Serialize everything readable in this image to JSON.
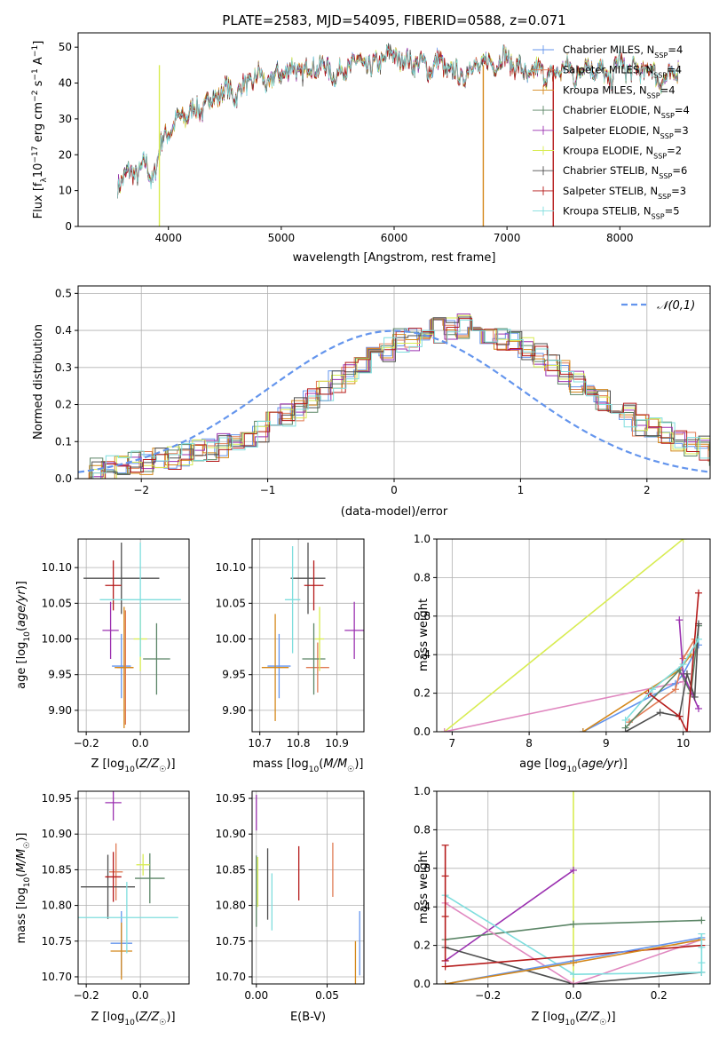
{
  "colors": {
    "chabrier_miles": "#6495ed",
    "salpeter_miles": "#e07b54",
    "kroupa_miles": "#d4871a",
    "chabrier_elodie": "#5b8566",
    "salpeter_elodie": "#9b30b0",
    "kroupa_elodie": "#d8ec52",
    "chabrier_stelib": "#4f4f4f",
    "salpeter_stelib": "#b51a1a",
    "kroupa_stelib": "#7fdede",
    "pink": "#e088c0",
    "normal_curve": "#6495ed"
  },
  "chart_data": [
    {
      "id": "spectrum",
      "type": "line",
      "title": "PLATE=2583, MJD=54095, FIBERID=0588, z=0.071",
      "xlabel": "wavelength [Angstrom, rest frame]",
      "ylabel": "Flux [f_λ 10^-17 erg cm^-2 s^-1 A^-1]",
      "xlim": [
        3200,
        8800
      ],
      "ylim": [
        0,
        54
      ],
      "xticks": [
        "4000",
        "5000",
        "6000",
        "7000",
        "8000"
      ],
      "yticks": [
        "0",
        "10",
        "20",
        "30",
        "40",
        "50"
      ],
      "legend_position": "right",
      "legend": [
        {
          "label": "Chabrier MILES, N_SSP=4",
          "main": "Chabrier MILES, N",
          "sub": "SSP",
          "tail": "=4",
          "color": "#6495ed"
        },
        {
          "label": "Salpeter MILES, N_SSP=4",
          "main": "Salpeter MILES, N",
          "sub": "SSP",
          "tail": "=4",
          "color": "#e07b54"
        },
        {
          "label": "Kroupa MILES, N_SSP=4",
          "main": "Kroupa MILES, N",
          "sub": "SSP",
          "tail": "=4",
          "color": "#d4871a"
        },
        {
          "label": "Chabrier ELODIE, N_SSP=4",
          "main": "Chabrier ELODIE, N",
          "sub": "SSP",
          "tail": "=4",
          "color": "#5b8566"
        },
        {
          "label": "Salpeter ELODIE, N_SSP=3",
          "main": "Salpeter ELODIE, N",
          "sub": "SSP",
          "tail": "=3",
          "color": "#9b30b0"
        },
        {
          "label": "Kroupa ELODIE, N_SSP=2",
          "main": "Kroupa ELODIE, N",
          "sub": "SSP",
          "tail": "=2",
          "color": "#d8ec52"
        },
        {
          "label": "Chabrier STELIB, N_SSP=6",
          "main": "Chabrier STELIB, N",
          "sub": "SSP",
          "tail": "=6",
          "color": "#4f4f4f"
        },
        {
          "label": "Salpeter STELIB, N_SSP=3",
          "main": "Salpeter STELIB, N",
          "sub": "SSP",
          "tail": "=3",
          "color": "#b51a1a"
        },
        {
          "label": "Kroupa STELIB, N_SSP=5",
          "main": "Kroupa STELIB, N",
          "sub": "SSP",
          "tail": "=5",
          "color": "#7fdede"
        }
      ],
      "envelope": {
        "x": [
          3550,
          3600,
          3700,
          3800,
          3850,
          3900,
          3950,
          4000,
          4050,
          4100,
          4200,
          4300,
          4400,
          4500,
          4600,
          4700,
          4800,
          4900,
          5000,
          5100,
          5200,
          5300,
          5400,
          5500,
          5600,
          5700,
          5800,
          5900,
          6000,
          6100,
          6200,
          6300,
          6400,
          6500,
          6600,
          6700,
          6800,
          6900,
          7000,
          7100,
          7200,
          7300,
          7400,
          7500,
          7600,
          7700,
          7800,
          7900,
          8000,
          8100,
          8200,
          8300,
          8400,
          8500
        ],
        "y": [
          12,
          14,
          15,
          17,
          13,
          18,
          24,
          27,
          28,
          30,
          32,
          33,
          36,
          38,
          37,
          40,
          42,
          40,
          43,
          44,
          43,
          45,
          44,
          42,
          45,
          46,
          44,
          47,
          48,
          46,
          46,
          44,
          46,
          43,
          42,
          45,
          45,
          46,
          47,
          44,
          42,
          44,
          41,
          45,
          42,
          45,
          44,
          41,
          46,
          43,
          44,
          43,
          40,
          44
        ]
      },
      "dropouts": [
        {
          "x": 3920,
          "color": "#d8ec52"
        },
        {
          "x": 6790,
          "color": "#d4871a"
        },
        {
          "x": 7410,
          "color": "#b51a1a"
        }
      ]
    },
    {
      "id": "residuals",
      "type": "step",
      "xlabel": "(data-model)/error",
      "ylabel": "Normed distribution",
      "xlim": [
        -2.5,
        2.5
      ],
      "ylim": [
        0,
        0.52
      ],
      "xticks": [
        "−2",
        "−1",
        "0",
        "1",
        "2"
      ],
      "yticks": [
        "0.0",
        "0.1",
        "0.2",
        "0.3",
        "0.4",
        "0.5"
      ],
      "legend": [
        {
          "label": "𝒩(0,1)",
          "color": "#6495ed",
          "style": "dashed"
        }
      ],
      "bin_width": 0.1,
      "bins_start": -2.5,
      "base_profile": [
        0.02,
        0.025,
        0.03,
        0.035,
        0.04,
        0.045,
        0.05,
        0.06,
        0.065,
        0.07,
        0.08,
        0.09,
        0.1,
        0.12,
        0.13,
        0.15,
        0.17,
        0.19,
        0.21,
        0.24,
        0.26,
        0.29,
        0.31,
        0.33,
        0.35,
        0.37,
        0.38,
        0.39,
        0.4,
        0.41,
        0.41,
        0.4,
        0.39,
        0.38,
        0.37,
        0.35,
        0.33,
        0.31,
        0.29,
        0.26,
        0.24,
        0.21,
        0.19,
        0.17,
        0.15,
        0.13,
        0.12,
        0.1,
        0.09,
        0.08,
        0.07
      ]
    },
    {
      "id": "age_vs_Z",
      "type": "errorbar",
      "xlabel": "Z [log10(Z/Z☉)]",
      "ylabel": "age [log10(age/yr)]",
      "xlim": [
        -0.23,
        0.18
      ],
      "ylim": [
        9.87,
        10.14
      ],
      "xticks": [
        "−0.2",
        "0.0"
      ],
      "yticks": [
        "9.90",
        "9.95",
        "10.00",
        "10.05",
        "10.10"
      ],
      "points": [
        {
          "x": -0.07,
          "y": 9.962,
          "xerr": 0.035,
          "yerr": 0.045,
          "color": "#6495ed"
        },
        {
          "x": -0.055,
          "y": 9.96,
          "xerr": 0.03,
          "yerr": 0.08,
          "color": "#e07b54"
        },
        {
          "x": -0.06,
          "y": 9.96,
          "xerr": 0.035,
          "yerr": 0.085,
          "color": "#d4871a"
        },
        {
          "x": 0.06,
          "y": 9.972,
          "xerr": 0.05,
          "yerr": 0.05,
          "color": "#5b8566"
        },
        {
          "x": -0.11,
          "y": 10.012,
          "xerr": 0.03,
          "yerr": 0.04,
          "color": "#9b30b0"
        },
        {
          "x": 0.0,
          "y": 10.0,
          "xerr": 0.025,
          "yerr": 0.045,
          "color": "#d8ec52"
        },
        {
          "x": -0.07,
          "y": 10.085,
          "xerr": 0.14,
          "yerr": 0.05,
          "color": "#4f4f4f"
        },
        {
          "x": -0.1,
          "y": 10.075,
          "xerr": 0.03,
          "yerr": 0.035,
          "color": "#b51a1a"
        },
        {
          "x": 0.0,
          "y": 10.055,
          "xerr": 0.15,
          "yerr": 0.08,
          "color": "#7fdede"
        }
      ]
    },
    {
      "id": "age_vs_mass",
      "type": "errorbar",
      "xlabel": "mass [log10(M/M☉)]",
      "ylabel": "",
      "xlim": [
        10.68,
        10.97
      ],
      "ylim": [
        9.87,
        10.14
      ],
      "xticks": [
        "10.7",
        "10.8",
        "10.9"
      ],
      "yticks": [
        "9.90",
        "9.95",
        "10.00",
        "10.05",
        "10.10"
      ],
      "points": [
        {
          "x": 10.75,
          "y": 9.962,
          "xerr": 0.03,
          "yerr": 0.045,
          "color": "#6495ed"
        },
        {
          "x": 10.85,
          "y": 9.96,
          "xerr": 0.03,
          "yerr": 0.035,
          "color": "#e07b54"
        },
        {
          "x": 10.74,
          "y": 9.96,
          "xerr": 0.035,
          "yerr": 0.075,
          "color": "#d4871a"
        },
        {
          "x": 10.84,
          "y": 9.972,
          "xerr": 0.03,
          "yerr": 0.05,
          "color": "#5b8566"
        },
        {
          "x": 10.945,
          "y": 10.012,
          "xerr": 0.025,
          "yerr": 0.04,
          "color": "#9b30b0"
        },
        {
          "x": 10.855,
          "y": 10.0,
          "xerr": 0.012,
          "yerr": 0.045,
          "color": "#d8ec52"
        },
        {
          "x": 10.825,
          "y": 10.085,
          "xerr": 0.045,
          "yerr": 0.05,
          "color": "#4f4f4f"
        },
        {
          "x": 10.84,
          "y": 10.075,
          "xerr": 0.025,
          "yerr": 0.035,
          "color": "#b51a1a"
        },
        {
          "x": 10.785,
          "y": 10.055,
          "xerr": 0.02,
          "yerr": 0.075,
          "color": "#7fdede"
        }
      ]
    },
    {
      "id": "weight_vs_age",
      "type": "line",
      "xlabel": "age [log10(age/yr)]",
      "ylabel": "mass weight",
      "xlim": [
        6.8,
        10.35
      ],
      "ylim": [
        0,
        1.0
      ],
      "xticks": [
        "7",
        "8",
        "9",
        "10"
      ],
      "yticks": [
        "0.0",
        "0.2",
        "0.4",
        "0.6",
        "0.8",
        "1.0"
      ],
      "series": [
        {
          "color": "#d8ec52",
          "x": [
            6.9,
            10.0
          ],
          "y": [
            0.0,
            1.0
          ]
        },
        {
          "color": "#e088c0",
          "x": [
            6.9,
            10.0
          ],
          "y": [
            0.0,
            0.26
          ]
        },
        {
          "color": "#6495ed",
          "x": [
            8.7,
            9.9,
            10.0,
            10.2
          ],
          "y": [
            0.0,
            0.25,
            0.3,
            0.45
          ]
        },
        {
          "color": "#d4871a",
          "x": [
            8.7,
            9.95,
            10.1
          ],
          "y": [
            0.0,
            0.32,
            0.4
          ]
        },
        {
          "color": "#e07b54",
          "x": [
            9.3,
            9.9,
            10.0,
            10.15
          ],
          "y": [
            0.05,
            0.22,
            0.38,
            0.48
          ]
        },
        {
          "color": "#5b8566",
          "x": [
            9.25,
            9.95,
            10.1,
            10.2
          ],
          "y": [
            0.02,
            0.32,
            0.2,
            0.55
          ]
        },
        {
          "color": "#9b30b0",
          "x": [
            9.95,
            10.0,
            10.2
          ],
          "y": [
            0.58,
            0.3,
            0.12
          ]
        },
        {
          "color": "#4f4f4f",
          "x": [
            9.25,
            9.7,
            9.95,
            10.05,
            10.15,
            10.2
          ],
          "y": [
            0.0,
            0.1,
            0.08,
            0.3,
            0.18,
            0.56
          ]
        },
        {
          "color": "#b51a1a",
          "x": [
            9.55,
            9.95,
            10.05,
            10.2
          ],
          "y": [
            0.2,
            0.08,
            0.0,
            0.72
          ]
        },
        {
          "color": "#7fdede",
          "x": [
            9.25,
            9.6,
            10.0,
            10.2
          ],
          "y": [
            0.06,
            0.22,
            0.35,
            0.48
          ]
        }
      ]
    },
    {
      "id": "mass_vs_Z",
      "type": "errorbar",
      "xlabel": "Z [log10(Z/Z☉)]",
      "ylabel": "mass [log10(M/M☉)]",
      "xlim": [
        -0.23,
        0.18
      ],
      "ylim": [
        10.69,
        10.96
      ],
      "xticks": [
        "−0.2",
        "0.0"
      ],
      "yticks": [
        "10.70",
        "10.75",
        "10.80",
        "10.85",
        "10.90",
        "10.95"
      ],
      "points": [
        {
          "x": -0.07,
          "y": 10.747,
          "xerr": 0.04,
          "yerr": 0.045,
          "color": "#6495ed"
        },
        {
          "x": -0.09,
          "y": 10.847,
          "xerr": 0.025,
          "yerr": 0.04,
          "color": "#e07b54"
        },
        {
          "x": -0.07,
          "y": 10.736,
          "xerr": 0.04,
          "yerr": 0.04,
          "color": "#d4871a"
        },
        {
          "x": 0.035,
          "y": 10.838,
          "xerr": 0.055,
          "yerr": 0.035,
          "color": "#5b8566"
        },
        {
          "x": -0.1,
          "y": 10.944,
          "xerr": 0.03,
          "yerr": 0.025,
          "color": "#9b30b0"
        },
        {
          "x": 0.01,
          "y": 10.857,
          "xerr": 0.025,
          "yerr": 0.015,
          "color": "#d8ec52"
        },
        {
          "x": -0.12,
          "y": 10.826,
          "xerr": 0.1,
          "yerr": 0.045,
          "color": "#4f4f4f"
        },
        {
          "x": -0.1,
          "y": 10.84,
          "xerr": 0.03,
          "yerr": 0.035,
          "color": "#b51a1a"
        },
        {
          "x": -0.05,
          "y": 10.783,
          "xerr": 0.19,
          "yerr": 0.05,
          "color": "#7fdede"
        }
      ]
    },
    {
      "id": "mass_vs_ebv",
      "type": "errorbar",
      "xlabel": "E(B-V)",
      "ylabel": "",
      "xlim": [
        -0.003,
        0.076
      ],
      "ylim": [
        10.69,
        10.96
      ],
      "xticks": [
        "0.00",
        "0.05"
      ],
      "yticks": [
        "10.70",
        "10.75",
        "10.80",
        "10.85",
        "10.90",
        "10.95"
      ],
      "points": [
        {
          "x": 0.073,
          "y": 10.747,
          "xerr": 0.0,
          "yerr": 0.045,
          "color": "#6495ed"
        },
        {
          "x": 0.054,
          "y": 10.85,
          "xerr": 0.0,
          "yerr": 0.038,
          "color": "#e07b54"
        },
        {
          "x": 0.07,
          "y": 10.72,
          "xerr": 0.0,
          "yerr": 0.03,
          "color": "#d4871a"
        },
        {
          "x": 0.0,
          "y": 10.82,
          "xerr": 0.0,
          "yerr": 0.05,
          "color": "#5b8566"
        },
        {
          "x": 0.0,
          "y": 10.93,
          "xerr": 0.0,
          "yerr": 0.025,
          "color": "#9b30b0"
        },
        {
          "x": 0.001,
          "y": 10.833,
          "xerr": 0.0,
          "yerr": 0.035,
          "color": "#d8ec52"
        },
        {
          "x": 0.008,
          "y": 10.83,
          "xerr": 0.0,
          "yerr": 0.05,
          "color": "#4f4f4f"
        },
        {
          "x": 0.03,
          "y": 10.845,
          "xerr": 0.0,
          "yerr": 0.038,
          "color": "#b51a1a"
        },
        {
          "x": 0.011,
          "y": 10.805,
          "xerr": 0.0,
          "yerr": 0.04,
          "color": "#7fdede"
        }
      ]
    },
    {
      "id": "weight_vs_Z",
      "type": "line",
      "xlabel": "Z [log10(Z/Z☉)]",
      "ylabel": "mass weight",
      "xlim": [
        -0.32,
        0.32
      ],
      "ylim": [
        0,
        1.0
      ],
      "xticks": [
        "−0.2",
        "0.0",
        "0.2"
      ],
      "yticks": [
        "0.0",
        "0.2",
        "0.4",
        "0.6",
        "0.8",
        "1.0"
      ],
      "series": [
        {
          "color": "#d8ec52",
          "x": [
            0.0,
            0.0
          ],
          "y": [
            0.0,
            1.0
          ]
        },
        {
          "color": "#9b30b0",
          "x": [
            -0.3,
            0.0
          ],
          "y": [
            0.12,
            0.59
          ]
        },
        {
          "color": "#5b8566",
          "x": [
            -0.3,
            0.0,
            0.3
          ],
          "y": [
            0.23,
            0.31,
            0.33
          ]
        },
        {
          "color": "#4f4f4f",
          "x": [
            -0.3,
            0.0,
            0.3
          ],
          "y": [
            0.19,
            0.0,
            0.06
          ]
        },
        {
          "color": "#e088c0",
          "x": [
            -0.3,
            0.0,
            0.3
          ],
          "y": [
            0.42,
            0.0,
            0.23
          ]
        },
        {
          "color": "#7fdede",
          "x": [
            -0.3,
            0.0,
            0.3
          ],
          "y": [
            0.46,
            0.05,
            0.06
          ]
        },
        {
          "color": "#b51a1a",
          "x": [
            -0.3,
            0.3
          ],
          "y": [
            0.09,
            0.2
          ]
        },
        {
          "color": "#6495ed",
          "x": [
            -0.3,
            0.0,
            0.3
          ],
          "y": [
            0.0,
            0.12,
            0.24
          ]
        },
        {
          "color": "#d4871a",
          "x": [
            -0.3,
            0.0,
            0.3
          ],
          "y": [
            0.0,
            0.11,
            0.23
          ]
        }
      ],
      "stacks": [
        {
          "x": -0.3,
          "color": "#b51a1a",
          "y": [
            0.72,
            0.56,
            0.35,
            0.12
          ]
        },
        {
          "x": 0.3,
          "color": "#7fdede",
          "y": [
            0.26,
            0.19,
            0.11,
            0.06
          ]
        }
      ]
    }
  ]
}
